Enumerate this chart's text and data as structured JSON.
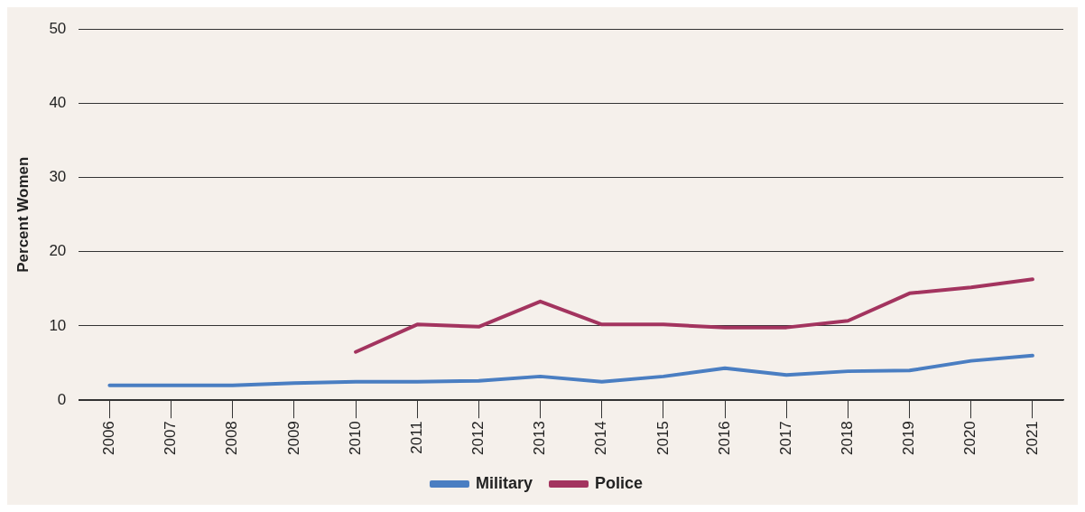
{
  "chart_data": {
    "type": "line",
    "ylabel": "Percent Women",
    "categories": [
      "2006",
      "2007",
      "2008",
      "2009",
      "2010",
      "2011",
      "2012",
      "2013",
      "2014",
      "2015",
      "2016",
      "2017",
      "2018",
      "2019",
      "2020",
      "2021"
    ],
    "series": [
      {
        "name": "Military",
        "color": "#4a7ec2",
        "values": [
          2.0,
          2.0,
          2.0,
          2.3,
          2.5,
          2.5,
          2.6,
          3.2,
          2.5,
          3.2,
          4.3,
          3.4,
          3.9,
          4.0,
          5.3,
          6.0
        ]
      },
      {
        "name": "Police",
        "color": "#a3345f",
        "values": [
          null,
          null,
          null,
          null,
          6.5,
          10.2,
          9.9,
          13.3,
          10.2,
          10.2,
          9.8,
          9.8,
          10.7,
          14.4,
          15.2,
          16.3
        ]
      }
    ],
    "ylim": [
      0,
      50
    ],
    "yticks": [
      0,
      10,
      20,
      30,
      40,
      50
    ],
    "grid": "y",
    "legend": "bottom",
    "marker": "none",
    "line_style": "solid"
  }
}
